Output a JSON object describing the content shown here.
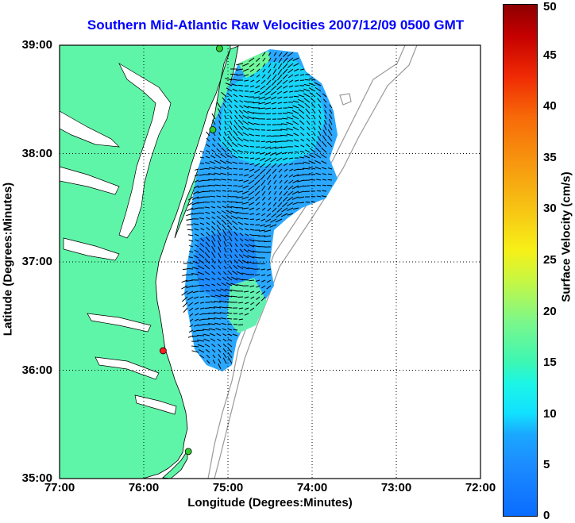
{
  "title": "Southern Mid-Atlantic Raw Velocities 2007/12/09 0500 GMT",
  "map": {
    "xlabel": "Longitude (Degrees:Minutes)",
    "ylabel": "Latitude (Degrees:Minutes)",
    "x_ticks": [
      "77:00",
      "76:00",
      "75:00",
      "74:00",
      "73:00",
      "72:00"
    ],
    "y_ticks": [
      "39:00",
      "38:00",
      "37:00",
      "36:00",
      "35:00"
    ],
    "lon_range": [
      -77,
      -72
    ],
    "lat_range": [
      35,
      39
    ],
    "grid": "dotted",
    "land_color": "#5ff5a8",
    "stations": [
      {
        "lon": -75.1,
        "lat": 38.97,
        "color": "#2ecc2e"
      },
      {
        "lon": -75.18,
        "lat": 38.22,
        "color": "#2ecc2e"
      },
      {
        "lon": -75.77,
        "lat": 36.18,
        "color": "#ff2020"
      },
      {
        "lon": -75.47,
        "lat": 35.25,
        "color": "#2ecc2e"
      }
    ]
  },
  "colorbar": {
    "label": "Surface Velocity (cm/s)",
    "ticks": [
      "0",
      "5",
      "10",
      "15",
      "20",
      "25",
      "30",
      "35",
      "40",
      "45",
      "50"
    ],
    "range": [
      0,
      50
    ]
  }
}
